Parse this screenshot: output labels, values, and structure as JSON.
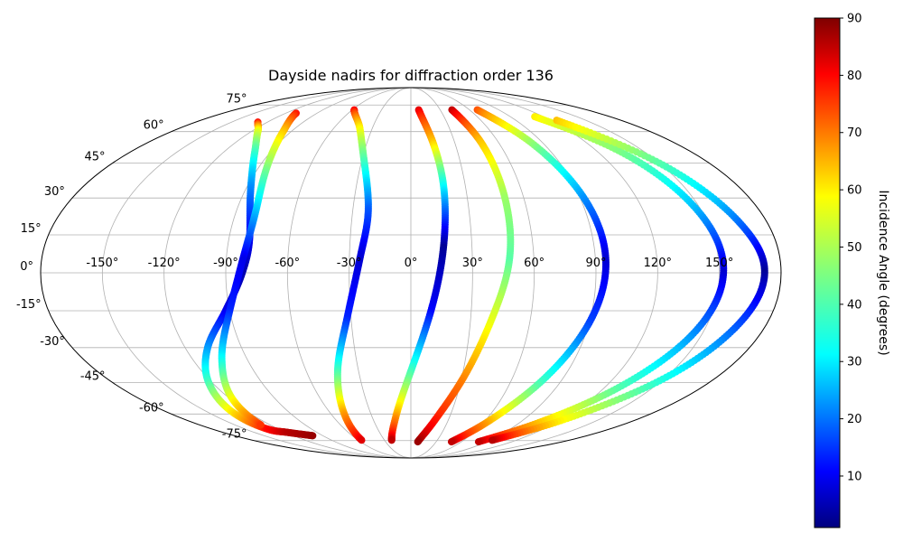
{
  "chart_data": {
    "type": "scatter",
    "projection": "mollweide",
    "title": "Dayside nadirs for diffraction order 136",
    "xtick_labels": [
      "-150°",
      "-120°",
      "-90°",
      "-60°",
      "-30°",
      "0°",
      "30°",
      "60°",
      "90°",
      "120°",
      "150°"
    ],
    "xticks": [
      -150,
      -120,
      -90,
      -60,
      -30,
      0,
      30,
      60,
      90,
      120,
      150
    ],
    "ytick_labels": [
      "-75°",
      "-60°",
      "-45°",
      "-30°",
      "-15°",
      "0°",
      "15°",
      "30°",
      "45°",
      "60°",
      "75°"
    ],
    "yticks": [
      -75,
      -60,
      -45,
      -30,
      -15,
      0,
      15,
      30,
      45,
      60,
      75
    ],
    "grid": true,
    "colormap": "jet",
    "colorbar": {
      "label": "Incidence Angle (degrees)",
      "range": [
        1,
        90
      ],
      "tick_labels": [
        "10",
        "20",
        "30",
        "40",
        "50",
        "60",
        "70",
        "80",
        "90"
      ],
      "ticks": [
        10,
        20,
        30,
        40,
        50,
        60,
        70,
        80,
        90
      ]
    },
    "series": [
      {
        "lon": [
          -128,
          -115,
          -100,
          -88,
          -80,
          -82,
          -92,
          -108,
          -122,
          -132,
          -130,
          -118,
          -100
        ],
        "lat": [
          65,
          60,
          50,
          35,
          15,
          0,
          -15,
          -30,
          -45,
          -60,
          -68,
          -70,
          -72
        ],
        "inc": [
          80,
          55,
          40,
          25,
          12,
          5,
          10,
          25,
          40,
          60,
          78,
          85,
          88
        ]
      },
      {
        "lon": [
          -110,
          -96,
          -86,
          -80,
          -82,
          -90,
          -104,
          -118,
          -128
        ],
        "lat": [
          70,
          60,
          45,
          25,
          5,
          -15,
          -35,
          -52,
          -66
        ],
        "inc": [
          78,
          62,
          48,
          30,
          10,
          15,
          35,
          55,
          75
        ]
      },
      {
        "lon": [
          -58,
          -40,
          -28,
          -22,
          -25,
          -32,
          -42,
          -50,
          -56
        ],
        "lat": [
          72,
          62,
          45,
          25,
          5,
          -18,
          -40,
          -60,
          -75
        ],
        "inc": [
          80,
          58,
          40,
          20,
          8,
          15,
          40,
          65,
          82
        ]
      },
      {
        "lon": [
          8,
          15,
          18,
          16,
          10,
          0,
          -12,
          -22
        ],
        "lat": [
          72,
          55,
          35,
          10,
          -15,
          -40,
          -62,
          -75
        ],
        "inc": [
          82,
          62,
          35,
          3,
          12,
          40,
          66,
          85
        ]
      },
      {
        "lon": [
          42,
          48,
          50,
          48,
          40,
          30,
          18,
          8
        ],
        "lat": [
          72,
          55,
          30,
          5,
          -20,
          -45,
          -65,
          -76
        ],
        "inc": [
          85,
          62,
          48,
          42,
          55,
          68,
          78,
          88
        ]
      },
      {
        "lon": [
          68,
          82,
          92,
          95,
          90,
          78,
          62,
          48
        ],
        "lat": [
          72,
          55,
          30,
          5,
          -20,
          -45,
          -65,
          -76
        ],
        "inc": [
          72,
          48,
          25,
          8,
          18,
          40,
          65,
          85
        ]
      },
      {
        "lon": [
          112,
          135,
          148,
          152,
          145,
          128,
          105,
          80
        ],
        "lat": [
          68,
          50,
          25,
          0,
          -25,
          -48,
          -65,
          -76
        ],
        "inc": [
          58,
          45,
          28,
          8,
          25,
          42,
          62,
          85
        ]
      },
      {
        "lon": [
          125,
          150,
          166,
          172,
          165,
          148,
          120,
          92
        ],
        "lat": [
          66,
          45,
          20,
          0,
          -22,
          -45,
          -64,
          -75
        ],
        "inc": [
          62,
          42,
          22,
          3,
          20,
          38,
          58,
          86
        ]
      }
    ]
  }
}
